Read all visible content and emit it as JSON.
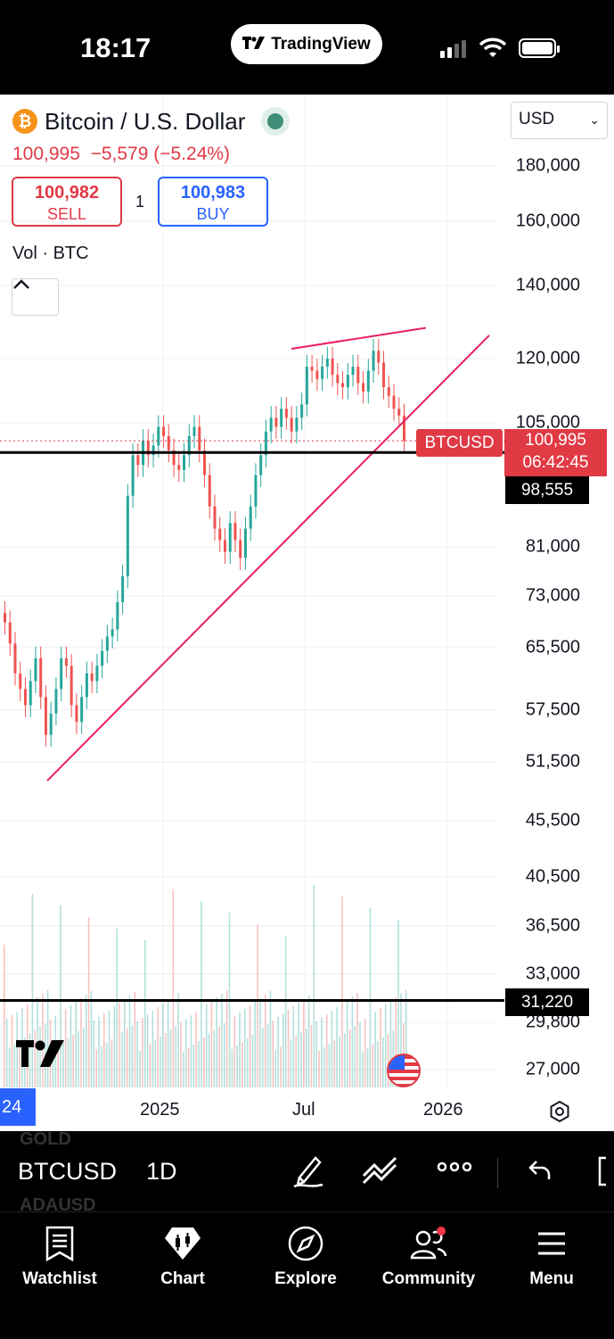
{
  "status_bar": {
    "time": "18:17",
    "app_badge": "TradingView"
  },
  "symbol": {
    "name": "Bitcoin / U.S. Dollar",
    "last": "100,995",
    "change": "−5,579 (−5.24%)",
    "sell_price": "100,982",
    "sell_label": "SELL",
    "buy_price": "100,983",
    "buy_label": "BUY",
    "spread": "1",
    "volume_label": "Vol · BTC",
    "currency": "USD"
  },
  "price_axis": [
    "180,000",
    "160,000",
    "140,000",
    "120,000",
    "105,000",
    "81,000",
    "73,000",
    "65,500",
    "57,500",
    "51,500",
    "45,500",
    "40,500",
    "36,500",
    "33,000",
    "29,800",
    "27,000"
  ],
  "tags": {
    "ticker": "BTCUSD",
    "last_price": "100,995",
    "countdown": "06:42:45",
    "hline_1": "98,555",
    "hline_2": "31,220"
  },
  "time_axis": {
    "start": "24",
    "t1": "2025",
    "t2": "Jul",
    "t3": "2026"
  },
  "toolbar": {
    "symbol": "BTCUSD",
    "interval": "1D",
    "ghost_above": "GOLD",
    "ghost_below": "ADAUSD"
  },
  "nav": [
    {
      "label": "Watchlist",
      "icon": "watchlist-icon"
    },
    {
      "label": "Chart",
      "icon": "chart-icon"
    },
    {
      "label": "Explore",
      "icon": "compass-icon"
    },
    {
      "label": "Community",
      "icon": "community-icon"
    },
    {
      "label": "Menu",
      "icon": "menu-icon"
    }
  ],
  "chart_data": {
    "type": "candlestick",
    "scale": "log",
    "ylim": [
      26000,
      190000
    ],
    "closes": [
      69000,
      66000,
      62000,
      60000,
      58000,
      61000,
      64000,
      59000,
      54500,
      57000,
      60000,
      64000,
      63000,
      58000,
      56000,
      59000,
      62000,
      61000,
      63000,
      65000,
      67000,
      68000,
      72000,
      76000,
      90000,
      98000,
      96000,
      101000,
      98000,
      100000,
      104000,
      102000,
      99000,
      96000,
      95000,
      98000,
      102000,
      104000,
      99000,
      94000,
      88000,
      84000,
      82000,
      80000,
      85000,
      82000,
      79000,
      84000,
      88000,
      94000,
      98000,
      103000,
      106000,
      104000,
      108000,
      106000,
      103000,
      106000,
      109000,
      118000,
      117000,
      115000,
      118000,
      120000,
      116000,
      114000,
      113000,
      116000,
      118000,
      114000,
      112000,
      117000,
      122000,
      119000,
      113000,
      111000,
      108000,
      106500,
      100995
    ],
    "date_labels": [
      "2025",
      "Jul",
      "2026"
    ],
    "horizontal_lines": [
      98555,
      31220
    ],
    "last_price": 100995,
    "trendlines": [
      {
        "from": [
          "start",
          49500
        ],
        "to": [
          "Oct 2025",
          126000
        ]
      },
      {
        "from": [
          "Jul 2025",
          122500
        ],
        "to": [
          "Oct 2025",
          128000
        ]
      }
    ],
    "colors": {
      "up": "#26a69a",
      "down": "#ef5350",
      "trendline": "#e91e63",
      "last": "#e03a45"
    }
  }
}
